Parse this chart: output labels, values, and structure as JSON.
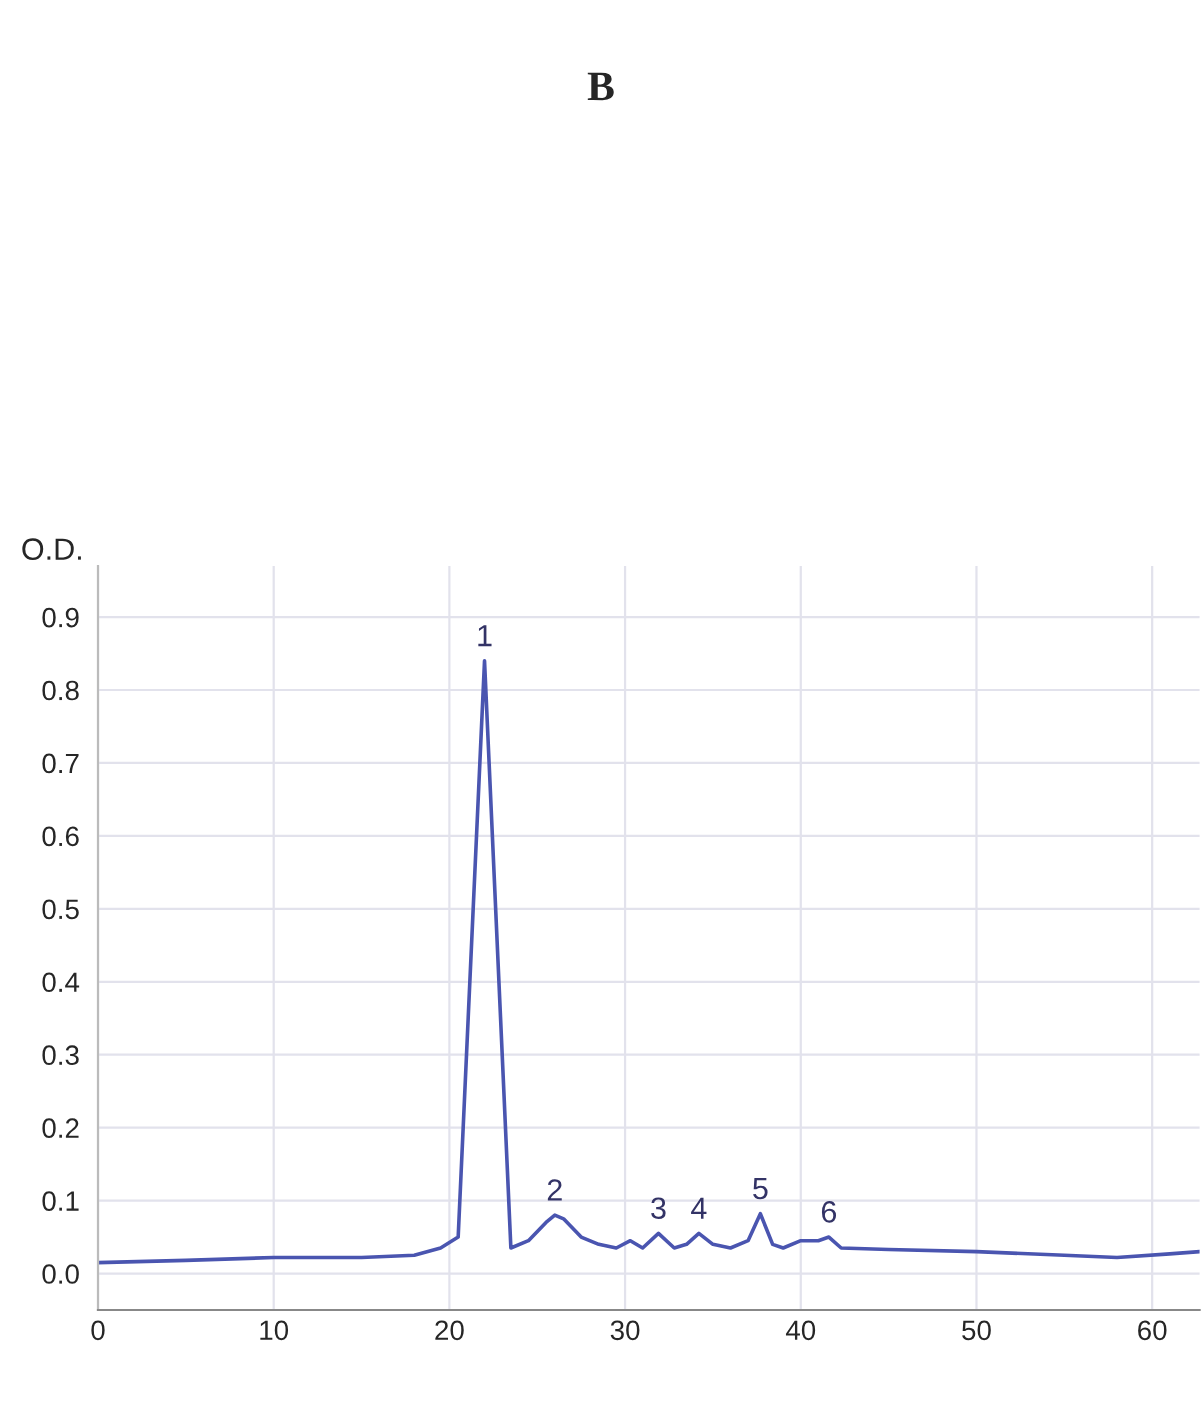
{
  "chart_data": {
    "type": "line",
    "title": "B",
    "ylabel": "O.D.",
    "x": [
      0,
      5,
      10,
      15,
      18,
      19.5,
      20.5,
      22,
      23.5,
      24.5,
      25.5,
      26,
      26.5,
      27.5,
      28.5,
      29.5,
      30.3,
      31,
      31.9,
      32.8,
      33.5,
      34.2,
      35,
      36,
      37,
      37.7,
      38.4,
      39,
      40,
      41,
      41.6,
      42.3,
      45,
      50,
      55,
      58,
      61,
      62.7
    ],
    "series": [
      {
        "color": "#4a55b0",
        "values": [
          0.015,
          0.018,
          0.022,
          0.022,
          0.025,
          0.035,
          0.05,
          0.84,
          0.035,
          0.045,
          0.07,
          0.08,
          0.075,
          0.05,
          0.04,
          0.035,
          0.045,
          0.035,
          0.055,
          0.035,
          0.04,
          0.055,
          0.04,
          0.035,
          0.045,
          0.082,
          0.04,
          0.035,
          0.045,
          0.045,
          0.05,
          0.035,
          0.033,
          0.03,
          0.025,
          0.022,
          0.027,
          0.03
        ]
      }
    ],
    "annotations": [
      {
        "text": "1",
        "x": 22,
        "y": 0.84
      },
      {
        "text": "2",
        "x": 26,
        "y": 0.08
      },
      {
        "text": "3",
        "x": 31.9,
        "y": 0.055
      },
      {
        "text": "4",
        "x": 34.2,
        "y": 0.055
      },
      {
        "text": "5",
        "x": 37.7,
        "y": 0.082
      },
      {
        "text": "6",
        "x": 41.6,
        "y": 0.05
      }
    ],
    "xlim": [
      0,
      62.7
    ],
    "ylim": [
      -0.05,
      0.97
    ],
    "xticks": [
      0,
      10,
      20,
      30,
      40,
      50,
      60
    ],
    "yticks": [
      {
        "value": 0,
        "label": "0.0"
      },
      0.1,
      0.2,
      0.3,
      0.4,
      0.5,
      0.6,
      0.7,
      0.8,
      0.9
    ],
    "grid": true,
    "line_style": "solid",
    "marker": "none"
  }
}
